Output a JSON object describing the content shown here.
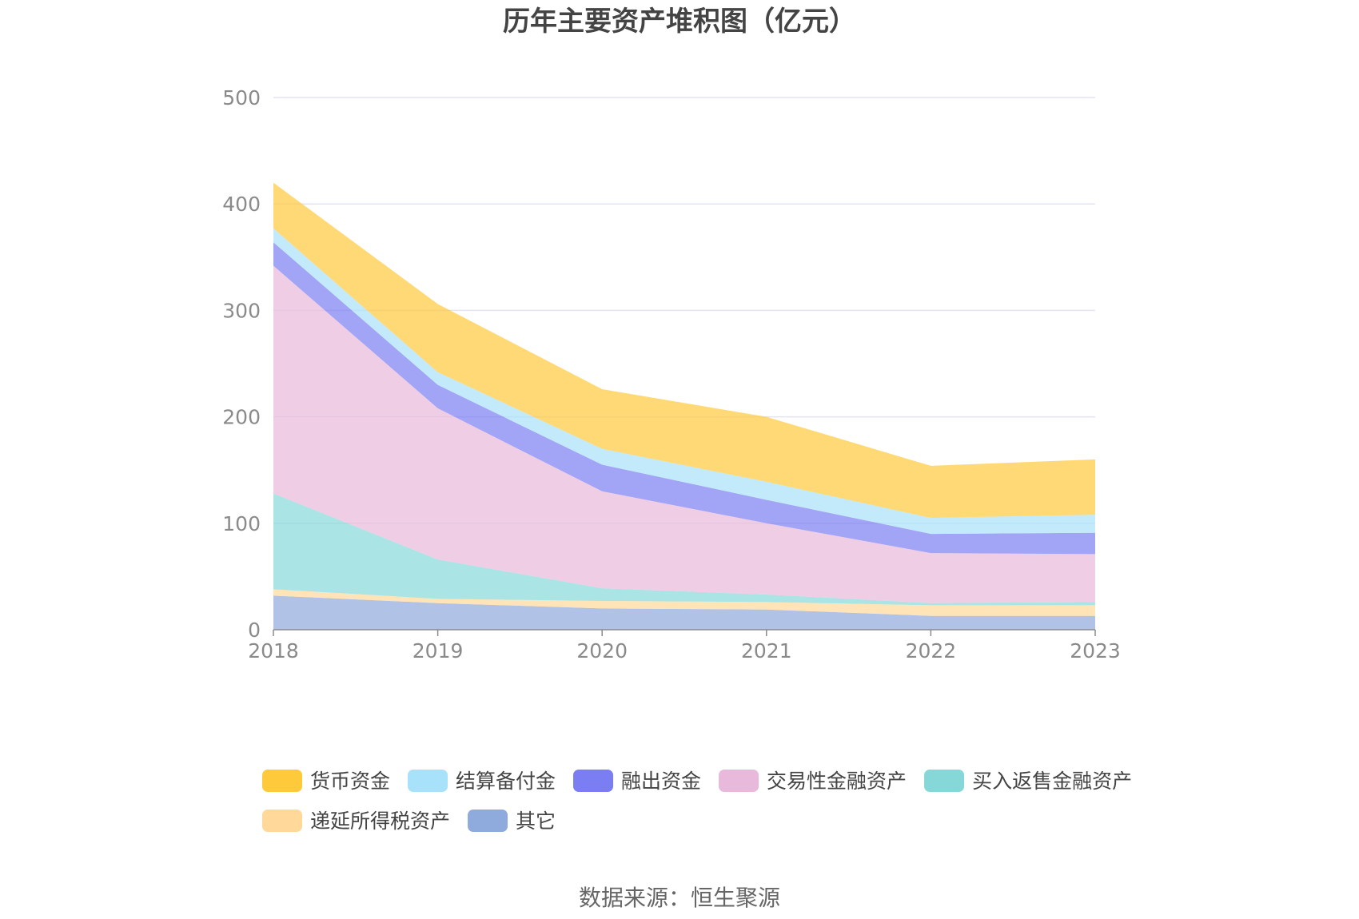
{
  "chart_data": {
    "type": "area",
    "stacked": true,
    "title": "历年主要资产堆积图（亿元）",
    "x": [
      "2018",
      "2019",
      "2020",
      "2021",
      "2022",
      "2023"
    ],
    "ylim": [
      0,
      500
    ],
    "yticks": [
      0,
      100,
      200,
      300,
      400,
      500
    ],
    "grid": true,
    "legend_position": "bottom",
    "series": [
      {
        "name": "其它",
        "color": "#8faadc",
        "values": [
          32,
          25,
          20,
          19,
          13,
          13
        ]
      },
      {
        "name": "递延所得税资产",
        "color": "#ffd89a",
        "values": [
          6,
          4,
          7,
          7,
          10,
          10
        ]
      },
      {
        "name": "买入返售金融资产",
        "color": "#86d8d8",
        "values": [
          90,
          37,
          12,
          7,
          2,
          3
        ]
      },
      {
        "name": "交易性金融资产",
        "color": "#e8b9da",
        "values": [
          214,
          142,
          91,
          67,
          47,
          45
        ]
      },
      {
        "name": "融出资金",
        "color": "#7b7ef2",
        "values": [
          22,
          22,
          25,
          22,
          18,
          20
        ]
      },
      {
        "name": "结算备付金",
        "color": "#a8e1fa",
        "values": [
          13,
          12,
          15,
          17,
          15,
          17
        ]
      },
      {
        "name": "货币资金",
        "color": "#ffc93c",
        "values": [
          43,
          64,
          56,
          61,
          49,
          52
        ]
      }
    ],
    "legend_order": [
      "货币资金",
      "结算备付金",
      "融出资金",
      "交易性金融资产",
      "买入返售金融资产",
      "递延所得税资产",
      "其它"
    ]
  },
  "footer": {
    "source": "数据来源：恒生聚源"
  }
}
